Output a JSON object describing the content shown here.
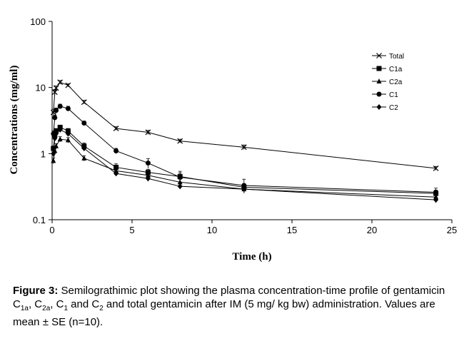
{
  "chart_data": {
    "type": "line",
    "yscale": "log",
    "xlabel": "Time (h)",
    "ylabel": "Concentrations (mg/ml)",
    "xlim": [
      0,
      25
    ],
    "ylim": [
      0.1,
      100
    ],
    "xticks": [
      0,
      5,
      10,
      15,
      20,
      25
    ],
    "xtick_labels": [
      "0",
      "5",
      "10",
      "15",
      "20",
      "25"
    ],
    "yticks": [
      0.1,
      1,
      10,
      100
    ],
    "ytick_labels": [
      "0.1",
      "1",
      "10",
      "100"
    ],
    "legend_position": "top-right",
    "x": [
      0.08,
      0.17,
      0.25,
      0.5,
      1,
      2,
      4,
      6,
      8,
      12,
      24
    ],
    "series": [
      {
        "name": "Total",
        "marker": "x",
        "values": [
          4.2,
          8.5,
          9.8,
          12,
          10.8,
          6.0,
          2.4,
          2.1,
          1.55,
          1.25,
          0.6
        ],
        "errors": [
          0.5,
          0.8,
          0.8,
          0.8,
          0.6,
          0.4,
          0.15,
          0.15,
          0.1,
          0.1,
          0.04
        ]
      },
      {
        "name": "C1a",
        "marker": "square",
        "values": [
          1.2,
          1.9,
          2.2,
          2.5,
          2.2,
          1.3,
          0.62,
          0.52,
          0.45,
          0.31,
          0.25
        ],
        "errors": [
          0.1,
          0.2,
          0.2,
          0.2,
          0.2,
          0.15,
          0.08,
          0.06,
          0.06,
          0.04,
          0.03
        ]
      },
      {
        "name": "C2a",
        "marker": "triangle",
        "values": [
          0.78,
          1.1,
          1.3,
          1.65,
          1.6,
          0.85,
          0.55,
          0.47,
          0.37,
          0.29,
          0.22
        ],
        "errors": [
          0.08,
          0.1,
          0.12,
          0.15,
          0.15,
          0.08,
          0.05,
          0.05,
          0.04,
          0.03,
          0.02
        ]
      },
      {
        "name": "C1",
        "marker": "circle",
        "values": [
          2.0,
          3.5,
          4.5,
          5.2,
          4.8,
          2.9,
          1.1,
          0.72,
          0.44,
          0.33,
          0.26
        ],
        "errors": [
          0.2,
          0.3,
          0.4,
          0.4,
          0.4,
          0.2,
          0.1,
          0.12,
          0.1,
          0.08,
          0.04
        ]
      },
      {
        "name": "C2",
        "marker": "diamond",
        "values": [
          1.0,
          1.7,
          2.0,
          2.3,
          2.0,
          1.2,
          0.5,
          0.42,
          0.32,
          0.29,
          0.2
        ],
        "errors": [
          0.1,
          0.15,
          0.15,
          0.2,
          0.15,
          0.1,
          0.04,
          0.04,
          0.03,
          0.03,
          0.02
        ]
      }
    ]
  },
  "caption": {
    "label": "Figure 3:",
    "parts": [
      {
        "t": " Semilograthimic plot showing the plasma concentration-time profile of gentamicin C",
        "sub": false
      },
      {
        "t": "1a",
        "sub": true
      },
      {
        "t": ", C",
        "sub": false
      },
      {
        "t": "2a",
        "sub": true
      },
      {
        "t": ", C",
        "sub": false
      },
      {
        "t": "1",
        "sub": true
      },
      {
        "t": " and C",
        "sub": false
      },
      {
        "t": "2",
        "sub": true
      },
      {
        "t": " and total gentamicin after IM (5 mg/ kg bw) administration. Values are mean ± SE (n=10).",
        "sub": false
      }
    ]
  }
}
